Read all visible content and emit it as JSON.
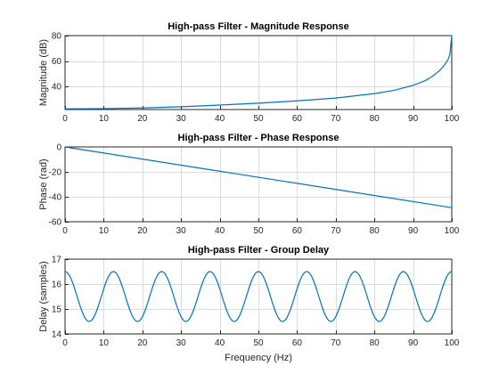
{
  "chart_data": [
    {
      "type": "line",
      "title": "High-pass Filter - Magnitude Response",
      "xlabel": "",
      "ylabel": "Magnitude (dB)",
      "xlim": [
        0,
        100
      ],
      "ylim": [
        22,
        80
      ],
      "xticks": [
        "0",
        "10",
        "20",
        "30",
        "40",
        "50",
        "60",
        "70",
        "80",
        "90",
        "100"
      ],
      "yticks": [
        "40",
        "60",
        "80"
      ],
      "ytick_values": [
        40,
        60,
        80
      ],
      "grid": true,
      "color": "#0072bd",
      "series": [
        {
          "x": [
            0,
            10,
            20,
            30,
            40,
            50,
            60,
            70,
            80,
            85,
            90,
            93,
            95,
            97,
            98,
            99,
            99.5,
            100
          ],
          "y": [
            22.5,
            22.7,
            23.2,
            24.2,
            25.5,
            27.0,
            28.8,
            31.0,
            34.5,
            37.0,
            41.0,
            44.5,
            48.0,
            53.0,
            56.5,
            61.0,
            65.0,
            80.0
          ]
        }
      ]
    },
    {
      "type": "line",
      "title": "High-pass Filter - Phase Response",
      "xlabel": "",
      "ylabel": "Phase (rad)",
      "xlim": [
        0,
        100
      ],
      "ylim": [
        -60,
        0
      ],
      "xticks": [
        "0",
        "10",
        "20",
        "30",
        "40",
        "50",
        "60",
        "70",
        "80",
        "90",
        "100"
      ],
      "yticks": [
        "0",
        "-20",
        "-40",
        "-60"
      ],
      "ytick_values": [
        0,
        -20,
        -40,
        -60
      ],
      "grid": true,
      "color": "#0072bd",
      "series": [
        {
          "x": [
            0,
            100
          ],
          "y": [
            0,
            -48.7
          ]
        }
      ]
    },
    {
      "type": "line",
      "title": "High-pass Filter - Group Delay",
      "xlabel": "Frequency (Hz)",
      "ylabel": "Delay (samples)",
      "xlim": [
        0,
        100
      ],
      "ylim": [
        14,
        17
      ],
      "xticks": [
        "0",
        "10",
        "20",
        "30",
        "40",
        "50",
        "60",
        "70",
        "80",
        "90",
        "100"
      ],
      "yticks": [
        "14",
        "15",
        "16",
        "17"
      ],
      "ytick_values": [
        14,
        15,
        16,
        17
      ],
      "grid": true,
      "color": "#0072bd",
      "series": [
        {
          "x": [
            0,
            3.125,
            6.25,
            9.375,
            12.5,
            15.625,
            18.75,
            21.875,
            25,
            28.125,
            31.25,
            34.375,
            37.5,
            40.625,
            43.75,
            46.875,
            50,
            53.125,
            56.25,
            59.375,
            62.5,
            65.625,
            68.75,
            71.875,
            75,
            78.125,
            81.25,
            84.375,
            87.5,
            90.625,
            93.75,
            96.875,
            100
          ],
          "y": [
            16.5,
            15.5,
            14.5,
            15.5,
            16.5,
            15.5,
            14.5,
            15.5,
            16.5,
            15.5,
            14.5,
            15.5,
            16.5,
            15.5,
            14.5,
            15.5,
            16.5,
            15.5,
            14.5,
            15.5,
            16.5,
            15.5,
            14.5,
            15.5,
            16.5,
            15.5,
            14.5,
            15.5,
            16.5,
            15.5,
            14.5,
            15.5,
            16.5
          ]
        }
      ]
    }
  ]
}
